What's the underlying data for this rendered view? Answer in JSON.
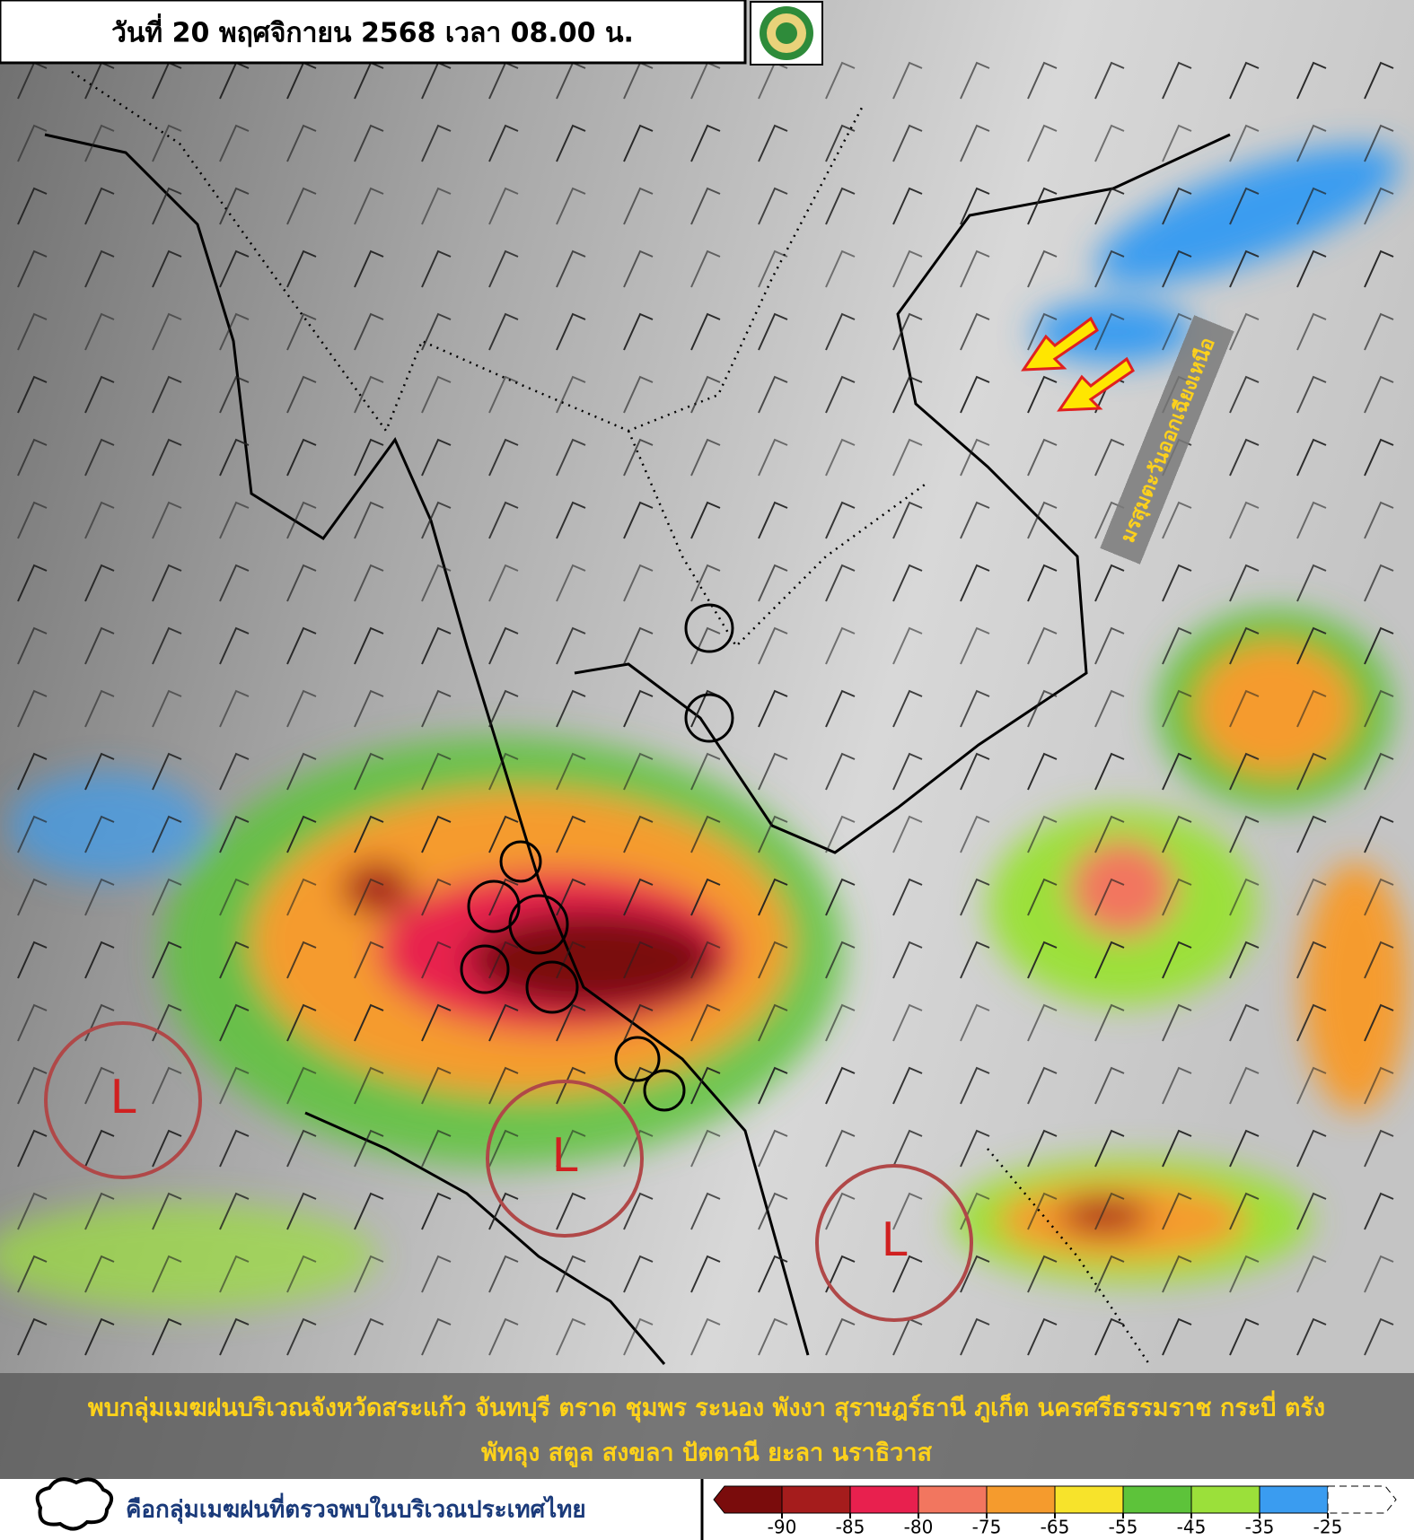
{
  "header": {
    "title": "วันที่ 20 พฤศจิกายน 2568 เวลา 08.00 น."
  },
  "map": {
    "annotation": "มรสุมตะวันออกเฉียงเหนือ",
    "lows": [
      "L",
      "L",
      "L"
    ]
  },
  "banner": {
    "lines": [
      "พบกลุ่มเมฆฝนบริเวณจังหวัดสระแก้ว จันทบุรี ตราด ชุมพร ระนอง พังงา สุราษฎร์ธานี ภูเก็ต นครศรีธรรมราช กระบี่ ตรัง",
      "พัทลุง สตูล สงขลา ปัตตานี ยะลา นราธิวาส"
    ]
  },
  "legend": {
    "cloud_label": "คือกลุ่มเมฆฝนที่ตรวจพบในบริเวณประเทศไทย",
    "colorbar": {
      "ticks": [
        -90,
        -85,
        -80,
        -75,
        -65,
        -55,
        -45,
        -35,
        -25
      ],
      "colors": [
        "#7a0c0c",
        "#a51c1c",
        "#e8204e",
        "#f2765f",
        "#f59b2d",
        "#f7e32b",
        "#5dc33a",
        "#9be03a",
        "#3a9cf0",
        "#ffffff"
      ]
    }
  }
}
